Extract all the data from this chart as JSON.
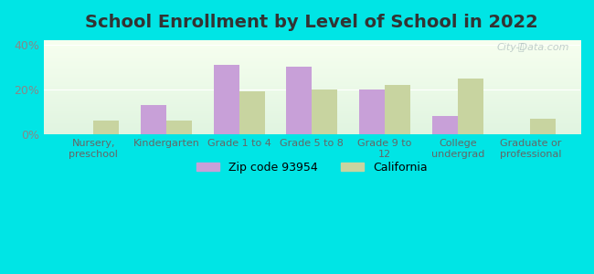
{
  "title": "School Enrollment by Level of School in 2022",
  "categories": [
    "Nursery,\npreschool",
    "Kindergarten",
    "Grade 1 to 4",
    "Grade 5 to 8",
    "Grade 9 to\n12",
    "College\nundergrad",
    "Graduate or\nprofessional"
  ],
  "zip_values": [
    0,
    13,
    31,
    30,
    20,
    8,
    0
  ],
  "ca_values": [
    6,
    6,
    19,
    20,
    22,
    25,
    7
  ],
  "zip_color": "#c8a0d8",
  "ca_color": "#c8d4a0",
  "ylim": [
    0,
    42
  ],
  "yticks": [
    0,
    20,
    40
  ],
  "ytick_labels": [
    "0%",
    "20%",
    "40%"
  ],
  "background_color": "#00e5e5",
  "title_fontsize": 14,
  "legend_zip_label": "Zip code 93954",
  "legend_ca_label": "California",
  "watermark": "City-Data.com"
}
